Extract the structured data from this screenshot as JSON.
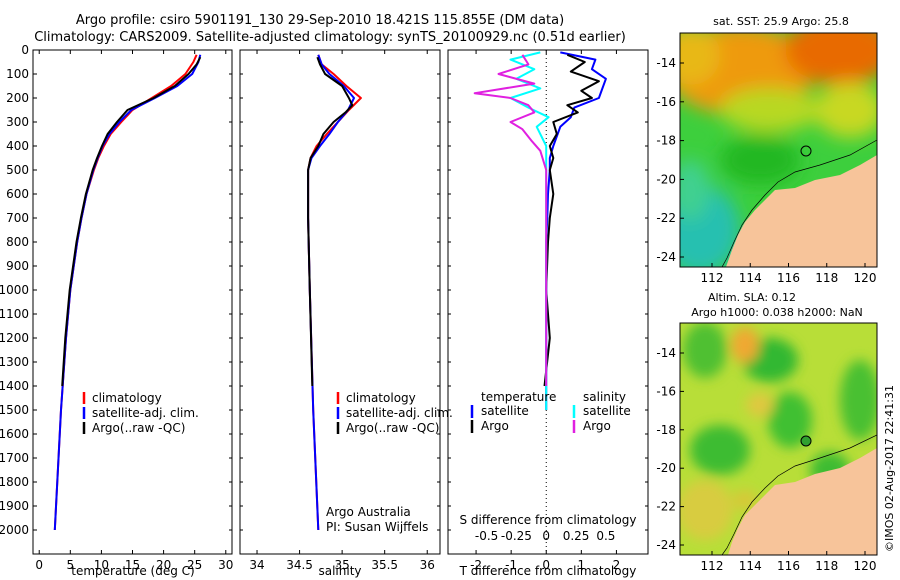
{
  "header": {
    "title_line1": "Argo profile: csiro 5901191_130 29-Sep-2010 18.421S 115.855E (DM data)",
    "title_line2": "Climatology: CARS2009. Satellite-adjusted climatology: synTS_20100929.nc (0.51d earlier)"
  },
  "colors": {
    "climatology": "#ff0000",
    "satellite": "#0000ff",
    "argo": "#000000",
    "sat_s": "#00ffff",
    "argo_s": "#e020e0"
  },
  "depth_ticks": [
    0,
    100,
    200,
    300,
    400,
    500,
    600,
    700,
    800,
    900,
    1000,
    1100,
    1200,
    1300,
    1400,
    1500,
    1600,
    1700,
    1800,
    1900,
    2000
  ],
  "chart_data": [
    {
      "type": "line",
      "name": "temperature",
      "xlabel": "temperature (deg C)",
      "xlim": [
        -1,
        31
      ],
      "ylim": [
        0,
        2100
      ],
      "xticks": [
        0,
        5,
        10,
        15,
        20,
        25,
        30
      ],
      "legend": [
        "climatology",
        "satellite-adj. clim.",
        "Argo(..raw -QC)"
      ],
      "series": [
        {
          "name": "climatology",
          "depth": [
            20,
            50,
            100,
            150,
            200,
            250,
            300,
            350,
            400,
            450,
            500,
            600,
            700,
            800,
            1000,
            1200,
            1500,
            2000
          ],
          "values": [
            25.3,
            24.8,
            23.5,
            21.2,
            18.1,
            15.0,
            13.2,
            11.5,
            10.4,
            9.5,
            8.8,
            7.6,
            6.8,
            6.1,
            5.0,
            4.3,
            3.5,
            2.5
          ]
        },
        {
          "name": "satellite-adj. clim.",
          "depth": [
            20,
            50,
            100,
            150,
            200,
            250,
            300,
            350,
            400,
            450,
            500,
            600,
            700,
            800,
            1000,
            1200,
            1500,
            2000
          ],
          "values": [
            25.9,
            25.6,
            24.6,
            22.2,
            18.6,
            14.8,
            12.9,
            11.3,
            10.2,
            9.4,
            8.7,
            7.6,
            6.8,
            6.1,
            5.0,
            4.3,
            3.5,
            2.5
          ]
        },
        {
          "name": "Argo(..raw -QC)",
          "depth": [
            30,
            60,
            100,
            150,
            200,
            250,
            300,
            350,
            400,
            450,
            500,
            600,
            700,
            800,
            1000,
            1200,
            1400
          ],
          "values": [
            25.9,
            25.3,
            24.0,
            21.8,
            18.4,
            14.2,
            12.5,
            11.0,
            10.1,
            9.3,
            8.6,
            7.5,
            6.7,
            6.0,
            4.9,
            4.2,
            3.7
          ]
        }
      ]
    },
    {
      "type": "line",
      "name": "salinity",
      "xlabel": "salinity",
      "xlim": [
        33.8,
        36.15
      ],
      "ylim": [
        0,
        2100
      ],
      "xticks": [
        34,
        34.5,
        35,
        35.5,
        36
      ],
      "xtick_labels": [
        "34",
        "34.5",
        "35",
        "35.5",
        "36"
      ],
      "legend": [
        "climatology",
        "satellite-adj. clim.",
        "Argo(..raw -QC)"
      ],
      "footer": [
        "Argo Australia",
        "PI: Susan Wijffels"
      ],
      "series": [
        {
          "name": "climatology",
          "depth": [
            20,
            60,
            100,
            150,
            200,
            250,
            300,
            350,
            400,
            450,
            500,
            700,
            1000,
            1500,
            2000
          ],
          "values": [
            34.72,
            34.76,
            34.9,
            35.05,
            35.22,
            35.08,
            34.95,
            34.82,
            34.7,
            34.63,
            34.6,
            34.6,
            34.62,
            34.66,
            34.72
          ]
        },
        {
          "name": "satellite-adj. clim.",
          "depth": [
            20,
            60,
            100,
            150,
            200,
            250,
            300,
            350,
            400,
            450,
            500,
            700,
            1000,
            1500,
            2000
          ],
          "values": [
            34.72,
            34.76,
            34.85,
            35.02,
            35.14,
            35.07,
            34.95,
            34.85,
            34.74,
            34.64,
            34.6,
            34.6,
            34.62,
            34.66,
            34.72
          ]
        },
        {
          "name": "Argo(..raw -QC)",
          "depth": [
            30,
            60,
            100,
            150,
            200,
            230,
            260,
            300,
            350,
            400,
            450,
            500,
            700,
            1000,
            1400
          ],
          "values": [
            34.71,
            34.74,
            34.8,
            35.0,
            35.08,
            35.12,
            35.04,
            34.9,
            34.78,
            34.72,
            34.63,
            34.6,
            34.6,
            34.62,
            34.65
          ]
        }
      ]
    },
    {
      "type": "line",
      "name": "difference",
      "xlabel": "T difference from climatology",
      "xlabel_top": "S difference from climatology",
      "xlim": [
        -2.8,
        2.9
      ],
      "ylim": [
        0,
        2100
      ],
      "xticks": [
        -2,
        -1,
        0,
        1,
        2
      ],
      "xticks_s": [
        -0.5,
        -0.25,
        0,
        0.25,
        0.5
      ],
      "xtick_labels_s": [
        "-0.5",
        "-0.25",
        "0",
        "0.25",
        "0.5"
      ],
      "legend_temperature": [
        "temperature",
        "satellite",
        "Argo"
      ],
      "legend_salinity": [
        "salinity",
        "satellite",
        "Argo"
      ],
      "series": [
        {
          "name": "satellite T",
          "depth": [
            10,
            40,
            80,
            120,
            160,
            200,
            240,
            280,
            320,
            360,
            400,
            450,
            500,
            600,
            700,
            800,
            1000,
            1200,
            1500
          ],
          "values": [
            0.4,
            1.4,
            1.3,
            1.7,
            1.6,
            1.5,
            0.8,
            0.7,
            0.4,
            0.3,
            0.2,
            0.1,
            0.1,
            0.05,
            0.03,
            0.0,
            0.0,
            0.0,
            0.0
          ]
        },
        {
          "name": "Argo T",
          "depth": [
            20,
            50,
            90,
            130,
            170,
            200,
            230,
            260,
            300,
            350,
            400,
            450,
            500,
            600,
            700,
            800,
            1000,
            1200,
            1400
          ],
          "values": [
            0.6,
            1.1,
            0.7,
            1.5,
            1.0,
            1.3,
            0.6,
            0.9,
            0.2,
            0.3,
            0.1,
            0.2,
            0.1,
            0.2,
            0.1,
            0.05,
            0.0,
            0.1,
            -0.05
          ]
        },
        {
          "name": "satellite S",
          "depth": [
            10,
            40,
            80,
            120,
            160,
            200,
            240,
            280,
            320,
            400,
            500,
            700,
            1000,
            1500
          ],
          "values": [
            -0.05,
            -0.3,
            -0.1,
            -0.25,
            -0.05,
            -0.3,
            -0.15,
            0.02,
            -0.08,
            0.0,
            0.0,
            0.0,
            0.0,
            0.0
          ]
        },
        {
          "name": "Argo S",
          "depth": [
            20,
            60,
            100,
            140,
            180,
            200,
            230,
            260,
            300,
            330,
            380,
            420,
            500,
            700,
            1000,
            1400
          ],
          "values": [
            -0.2,
            -0.15,
            -0.4,
            -0.1,
            -0.6,
            -0.3,
            -0.15,
            -0.1,
            -0.3,
            -0.2,
            -0.12,
            -0.05,
            0.0,
            0.0,
            0.0,
            0.0
          ]
        }
      ]
    }
  ],
  "maps": {
    "top_title": "sat. SST: 25.9 Argo: 25.8",
    "bottom_title_line1": "Altim. SLA: 0.12",
    "bottom_title_line2": "Argo h1000: 0.038 h2000: NaN",
    "lat_ticks": [
      "-14",
      "-16",
      "-18",
      "-20",
      "-22",
      "-24"
    ],
    "lon_ticks": [
      "112",
      "114",
      "116",
      "118",
      "120"
    ]
  },
  "stamp": "©IMOS 02-Aug-2017 22:41:31"
}
